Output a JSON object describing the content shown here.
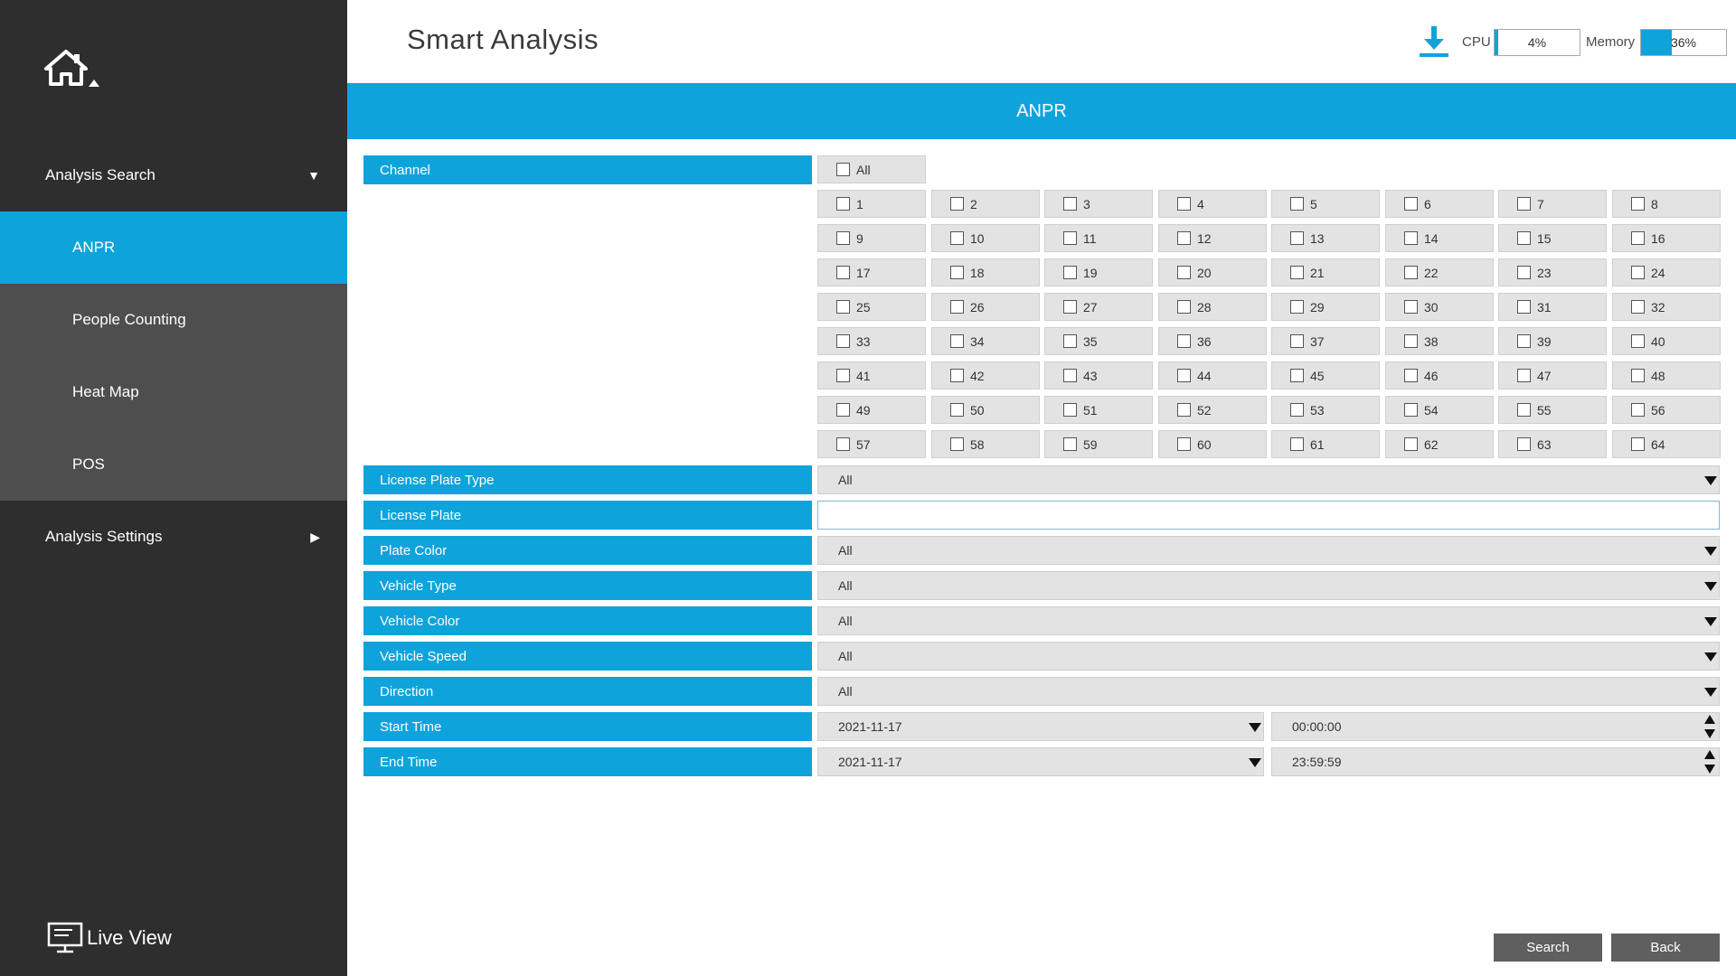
{
  "sidebar": {
    "analysis_search": "Analysis Search",
    "analysis_settings": "Analysis Settings",
    "items": [
      {
        "label": "ANPR"
      },
      {
        "label": "People Counting"
      },
      {
        "label": "Heat Map"
      },
      {
        "label": "POS"
      }
    ],
    "live_view": "Live View"
  },
  "header": {
    "title": "Smart Analysis",
    "cpu_label": "CPU",
    "cpu_value": "4%",
    "cpu_fraction": 0.04,
    "memory_label": "Memory",
    "memory_value": "36%",
    "memory_fraction": 0.36
  },
  "banner": "ANPR",
  "channel": {
    "label": "Channel",
    "all_label": "All",
    "channels": [
      "1",
      "2",
      "3",
      "4",
      "5",
      "6",
      "7",
      "8",
      "9",
      "10",
      "11",
      "12",
      "13",
      "14",
      "15",
      "16",
      "17",
      "18",
      "19",
      "20",
      "21",
      "22",
      "23",
      "24",
      "25",
      "26",
      "27",
      "28",
      "29",
      "30",
      "31",
      "32",
      "33",
      "34",
      "35",
      "36",
      "37",
      "38",
      "39",
      "40",
      "41",
      "42",
      "43",
      "44",
      "45",
      "46",
      "47",
      "48",
      "49",
      "50",
      "51",
      "52",
      "53",
      "54",
      "55",
      "56",
      "57",
      "58",
      "59",
      "60",
      "61",
      "62",
      "63",
      "64"
    ]
  },
  "fields": {
    "license_plate_type": {
      "label": "License Plate Type",
      "value": "All"
    },
    "license_plate": {
      "label": "License Plate",
      "value": ""
    },
    "plate_color": {
      "label": "Plate Color",
      "value": "All"
    },
    "vehicle_type": {
      "label": "Vehicle Type",
      "value": "All"
    },
    "vehicle_color": {
      "label": "Vehicle Color",
      "value": "All"
    },
    "vehicle_speed": {
      "label": "Vehicle Speed",
      "value": "All"
    },
    "direction": {
      "label": "Direction",
      "value": "All"
    },
    "start_time": {
      "label": "Start Time",
      "date": "2021-11-17",
      "time": "00:00:00"
    },
    "end_time": {
      "label": "End Time",
      "date": "2021-11-17",
      "time": "23:59:59"
    }
  },
  "buttons": {
    "search": "Search",
    "back": "Back"
  },
  "colors": {
    "accent": "#0fa3dc",
    "sidebar": "#2e2e2e",
    "submenu": "#4e4e4e",
    "button": "#5f5f5f"
  }
}
